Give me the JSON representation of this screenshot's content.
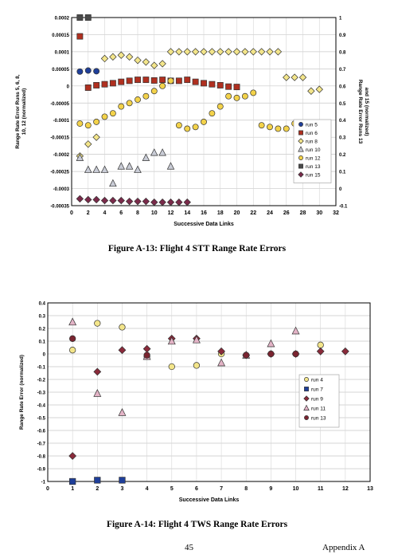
{
  "figure_a13": {
    "caption": "Figure A-13:  Flight 4 STT Range Rate Errors",
    "chart_data": {
      "type": "scatter",
      "xlabel": "Successive Data Links",
      "ylabel": "Range Rate Error Runs 5, 6, 8, 10, 12 (normalized)",
      "y2label": "Range Rate Error Runs 13 and 15 (normalized)",
      "xlim": [
        0,
        32
      ],
      "x_ticks": [
        "0",
        "2",
        "4",
        "6",
        "8",
        "10",
        "12",
        "14",
        "16",
        "18",
        "20",
        "22",
        "24",
        "26",
        "28",
        "30",
        "32"
      ],
      "ylim": [
        -0.00035,
        0.0002
      ],
      "y_ticks": [
        "0.0002",
        "0.00015",
        "0.0001",
        "0.00005",
        "0",
        "-0.00005",
        "-0.0001",
        "-0.00015",
        "-0.0002",
        "-0.00025",
        "-0.0003",
        "-0.00035"
      ],
      "y2lim": [
        -0.1,
        1
      ],
      "y2_ticks": [
        "1",
        "0.9",
        "0.8",
        "0.7",
        "0.6",
        "0.5",
        "0.4",
        "0.3",
        "0.2",
        "0.1",
        "0",
        "-0.1"
      ],
      "grid": true,
      "legend": "right-inside",
      "series": [
        {
          "name": "run 5",
          "axis": "left",
          "marker": "circle",
          "color": "#1f3f9a",
          "points": [
            [
              1,
              4.2e-05
            ],
            [
              2,
              4.5e-05
            ],
            [
              3,
              4.3e-05
            ]
          ]
        },
        {
          "name": "run 6",
          "axis": "left",
          "marker": "square",
          "color": "#b03020",
          "points": [
            [
              1,
              0.000145
            ],
            [
              2,
              -5e-06
            ],
            [
              3,
              2e-06
            ],
            [
              4,
              5e-06
            ],
            [
              5,
              8e-06
            ],
            [
              6,
              1.2e-05
            ],
            [
              7,
              1.5e-05
            ],
            [
              8,
              1.8e-05
            ],
            [
              9,
              1.8e-05
            ],
            [
              10,
              1.6e-05
            ],
            [
              11,
              1.8e-05
            ],
            [
              12,
              1.5e-05
            ],
            [
              13,
              1.5e-05
            ],
            [
              14,
              1.8e-05
            ],
            [
              15,
              1.2e-05
            ],
            [
              16,
              8e-06
            ],
            [
              17,
              5e-06
            ],
            [
              18,
              2e-06
            ],
            [
              19,
              -2e-06
            ],
            [
              20,
              -3e-06
            ]
          ]
        },
        {
          "name": "run 8",
          "axis": "right",
          "marker": "diamond",
          "color": "#f3e58a",
          "points": [
            [
              1,
              0.19
            ],
            [
              2,
              0.26
            ],
            [
              3,
              0.3
            ],
            [
              4,
              0.76
            ],
            [
              5,
              0.77
            ],
            [
              6,
              0.78
            ],
            [
              7,
              0.77
            ],
            [
              8,
              0.75
            ],
            [
              9,
              0.74
            ],
            [
              10,
              0.72
            ],
            [
              11,
              0.73
            ],
            [
              12,
              0.8
            ],
            [
              13,
              0.8
            ],
            [
              14,
              0.8
            ],
            [
              15,
              0.8
            ],
            [
              16,
              0.8
            ],
            [
              17,
              0.8
            ],
            [
              18,
              0.8
            ],
            [
              19,
              0.8
            ],
            [
              20,
              0.8
            ],
            [
              21,
              0.8
            ],
            [
              22,
              0.8
            ],
            [
              23,
              0.8
            ],
            [
              24,
              0.8
            ],
            [
              25,
              0.8
            ],
            [
              26,
              0.65
            ],
            [
              27,
              0.65
            ],
            [
              28,
              0.65
            ],
            [
              29,
              0.57
            ],
            [
              30,
              0.58
            ]
          ]
        },
        {
          "name": "run 10",
          "axis": "left",
          "marker": "triangle",
          "color": "#c9ccd6",
          "points": [
            [
              1,
              -0.00021
            ],
            [
              2,
              -0.000245
            ],
            [
              3,
              -0.000245
            ],
            [
              4,
              -0.000245
            ],
            [
              5,
              -0.000285
            ],
            [
              6,
              -0.000235
            ],
            [
              7,
              -0.000235
            ],
            [
              8,
              -0.000245
            ],
            [
              9,
              -0.00021
            ],
            [
              10,
              -0.000195
            ],
            [
              11,
              -0.000195
            ],
            [
              12,
              -0.000235
            ]
          ]
        },
        {
          "name": "run 12",
          "axis": "left",
          "marker": "circle",
          "color": "#f3d24a",
          "points": [
            [
              1,
              -0.00011
            ],
            [
              2,
              -0.000115
            ],
            [
              3,
              -0.000105
            ],
            [
              4,
              -9e-05
            ],
            [
              5,
              -8e-05
            ],
            [
              6,
              -6e-05
            ],
            [
              7,
              -5e-05
            ],
            [
              8,
              -4e-05
            ],
            [
              9,
              -3e-05
            ],
            [
              10,
              -1.5e-05
            ],
            [
              11,
              0
            ],
            [
              12,
              1.5e-05
            ],
            [
              13,
              -0.000115
            ],
            [
              14,
              -0.000125
            ],
            [
              15,
              -0.00012
            ],
            [
              16,
              -0.000105
            ],
            [
              17,
              -8e-05
            ],
            [
              18,
              -6e-05
            ],
            [
              19,
              -3e-05
            ],
            [
              20,
              -3.5e-05
            ],
            [
              21,
              -3e-05
            ],
            [
              22,
              -2e-05
            ],
            [
              23,
              -0.000115
            ],
            [
              24,
              -0.00012
            ],
            [
              25,
              -0.000125
            ],
            [
              26,
              -0.000125
            ],
            [
              27,
              -0.00011
            ]
          ]
        },
        {
          "name": "run 13",
          "axis": "right",
          "marker": "square",
          "color": "#4a4a4a",
          "points": [
            [
              1,
              1.0
            ],
            [
              2,
              1.0
            ]
          ]
        },
        {
          "name": "run 15",
          "axis": "right",
          "marker": "diamond",
          "color": "#7a2a4a",
          "points": [
            [
              1,
              -0.06
            ],
            [
              2,
              -0.065
            ],
            [
              3,
              -0.065
            ],
            [
              4,
              -0.07
            ],
            [
              5,
              -0.07
            ],
            [
              6,
              -0.07
            ],
            [
              7,
              -0.075
            ],
            [
              8,
              -0.075
            ],
            [
              9,
              -0.075
            ],
            [
              10,
              -0.08
            ],
            [
              11,
              -0.08
            ],
            [
              12,
              -0.08
            ],
            [
              13,
              -0.08
            ],
            [
              14,
              -0.08
            ]
          ]
        }
      ]
    }
  },
  "figure_a14": {
    "caption": "Figure A-14:  Flight 4 TWS Range Rate Errors",
    "chart_data": {
      "type": "scatter",
      "xlabel": "Successive Data Links",
      "ylabel": "Range Rate Error (normalized)",
      "xlim": [
        0,
        13
      ],
      "x_ticks": [
        "0",
        "1",
        "2",
        "3",
        "4",
        "5",
        "6",
        "7",
        "8",
        "9",
        "10",
        "11",
        "12",
        "13"
      ],
      "ylim": [
        -1,
        0.4
      ],
      "y_ticks": [
        "0.4",
        "0.3",
        "0.2",
        "0.1",
        "0",
        "-0.1",
        "-0.2",
        "-0.3",
        "-0.4",
        "-0.5",
        "-0.6",
        "-0.7",
        "-0.8",
        "-0.9",
        "-1"
      ],
      "grid": true,
      "legend": "right-inside",
      "series": [
        {
          "name": "run 4",
          "marker": "circle",
          "color": "#f3e58a",
          "points": [
            [
              1,
              0.03
            ],
            [
              2,
              0.24
            ],
            [
              3,
              0.21
            ],
            [
              4,
              -0.02
            ],
            [
              5,
              -0.1
            ],
            [
              6,
              -0.09
            ],
            [
              7,
              0.0
            ],
            [
              8,
              -0.01
            ],
            [
              9,
              0.0
            ],
            [
              10,
              0.0
            ],
            [
              11,
              0.07
            ]
          ]
        },
        {
          "name": "run 7",
          "marker": "square",
          "color": "#1f3f9a",
          "points": [
            [
              1,
              -1.0
            ],
            [
              2,
              -0.99
            ],
            [
              3,
              -0.99
            ]
          ]
        },
        {
          "name": "run 9",
          "marker": "diamond",
          "color": "#8a2a3a",
          "points": [
            [
              1,
              -0.8
            ],
            [
              2,
              -0.14
            ],
            [
              3,
              0.03
            ],
            [
              4,
              0.04
            ],
            [
              5,
              0.12
            ],
            [
              6,
              0.12
            ],
            [
              7,
              0.02
            ],
            [
              8,
              -0.01
            ],
            [
              9,
              0.0
            ],
            [
              10,
              0.0
            ],
            [
              11,
              0.02
            ],
            [
              12,
              0.02
            ]
          ]
        },
        {
          "name": "run 11",
          "marker": "triangle",
          "color": "#e3b3c6",
          "points": [
            [
              1,
              0.25
            ],
            [
              2,
              -0.31
            ],
            [
              3,
              -0.46
            ],
            [
              4,
              -0.02
            ],
            [
              5,
              0.1
            ],
            [
              6,
              0.11
            ],
            [
              7,
              -0.07
            ],
            [
              8,
              -0.01
            ],
            [
              9,
              0.08
            ],
            [
              10,
              0.18
            ]
          ]
        },
        {
          "name": "run 13",
          "marker": "circle",
          "color": "#7a2430",
          "points": [
            [
              1,
              0.12
            ],
            [
              4,
              -0.01
            ],
            [
              8,
              -0.01
            ],
            [
              9,
              0.0
            ],
            [
              10,
              0.0
            ]
          ]
        }
      ]
    }
  },
  "footer": {
    "page_number": "45",
    "appendix": "Appendix A"
  }
}
